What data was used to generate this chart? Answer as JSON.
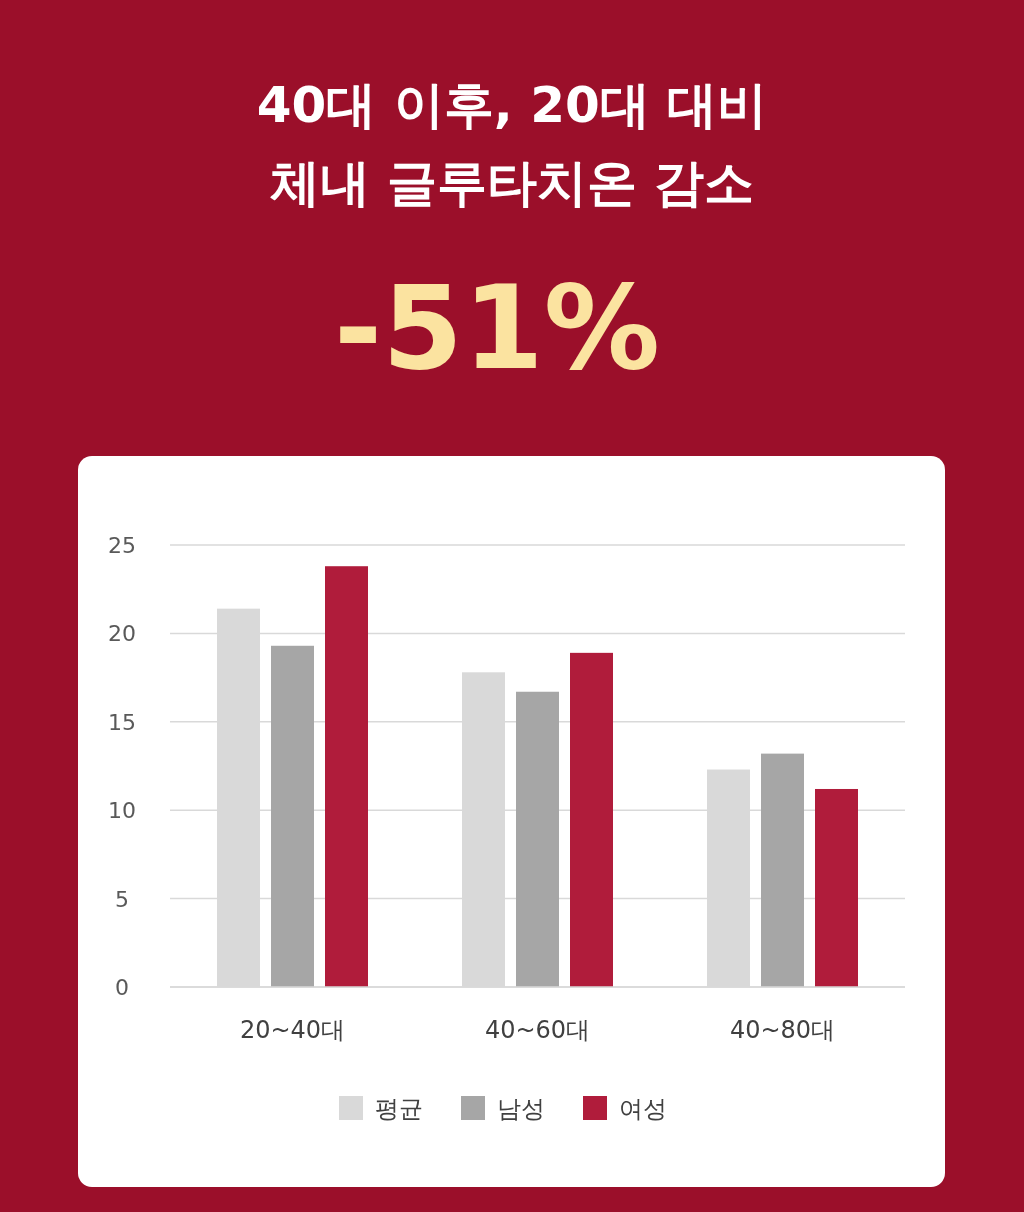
{
  "chart_data": {
    "type": "bar",
    "title": "40대 이후, 20대 대비\n체내 글루타치온 감소",
    "subtitle": "-51%",
    "categories": [
      "20~40대",
      "40~60대",
      "40~80대"
    ],
    "series": [
      {
        "name": "평균",
        "color": "#d9d9d9",
        "values": [
          21.4,
          17.8,
          12.3
        ]
      },
      {
        "name": "남성",
        "color": "#a6a6a6",
        "values": [
          19.3,
          16.7,
          13.2
        ]
      },
      {
        "name": "여성",
        "color": "#b01c3b",
        "values": [
          23.8,
          18.9,
          11.2
        ]
      }
    ],
    "ylim": [
      0,
      25
    ],
    "yticks": [
      0,
      5,
      10,
      15,
      20,
      25
    ],
    "grid": "y",
    "legend": "bottom"
  }
}
